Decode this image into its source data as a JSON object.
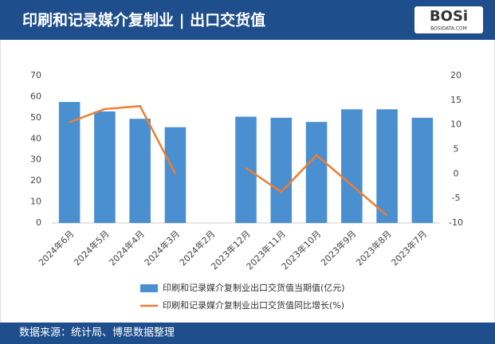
{
  "chart_data": {
    "type": "bar-line",
    "title": "印刷和记录媒介复制业 | 出口交货值",
    "logo": "BOSi",
    "logo_site": "BOSIDATA.COM",
    "source": "数据来源：统计局、博思数据整理",
    "categories": [
      "2024年6月",
      "2024年5月",
      "2024年4月",
      "2024年3月",
      "2024年2月",
      "2023年12月",
      "2023年11月",
      "2023年10月",
      "2023年9月",
      "2023年8月",
      "2023年7月"
    ],
    "series": [
      {
        "name": "印刷和记录媒介复制业出口交货值当期值(亿元)",
        "type": "bar",
        "color": "#4a8fd0",
        "values": [
          57.5,
          53,
          49.5,
          45.5,
          null,
          50.5,
          50,
          48,
          54,
          54,
          50
        ]
      },
      {
        "name": "印刷和记录媒介复制业出口交货值同比增长(%)",
        "type": "line",
        "axis": "y2",
        "color": "#ed7d31",
        "values": [
          10.5,
          13.2,
          13.8,
          0,
          null,
          1.2,
          -3.7,
          3.8,
          -2.3,
          -8.5,
          null
        ]
      }
    ],
    "ylim": [
      0,
      70
    ],
    "yticks": [
      0,
      10,
      20,
      30,
      40,
      50,
      60,
      70
    ],
    "y2lim": [
      -10,
      20
    ],
    "y2ticks": [
      -10,
      -5,
      0,
      5,
      10,
      15,
      20
    ]
  }
}
